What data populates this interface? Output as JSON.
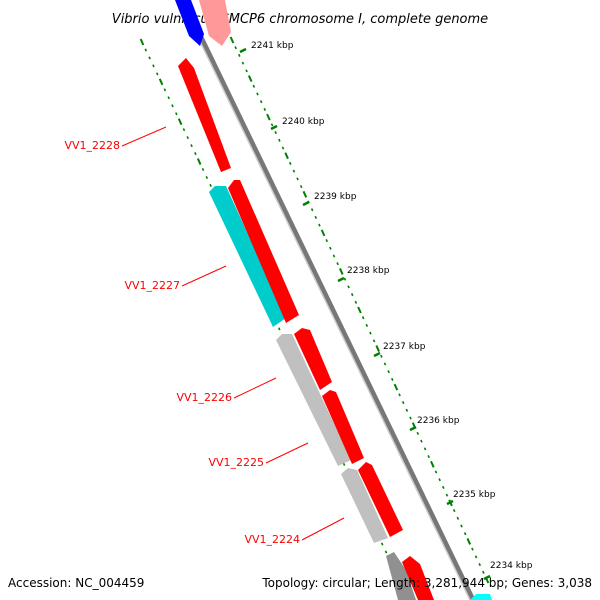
{
  "title": "Vibrio vulnificus CMCP6 chromosome I, complete genome",
  "footer": {
    "accession": "Accession: NC_004459",
    "info": "Topology: circular; Length: 3,281,944 bp; Genes: 3,038"
  },
  "scale_ticks": [
    "2241 kbp",
    "2240 kbp",
    "2239 kbp",
    "2238 kbp",
    "2237 kbp",
    "2236 kbp",
    "2235 kbp",
    "2234 kbp"
  ],
  "gene_labels": [
    "VV1_2228",
    "VV1_2227",
    "VV1_2226",
    "VV1_2225",
    "VV1_2224"
  ],
  "colors": {
    "forward_gene": "#ff0000",
    "reverse_gene_red": "#ff0000",
    "reverse_gene_cyan": "#00cccc",
    "reverse_gene_gray": "#c0c0c0",
    "blue_gene": "#0000ff",
    "pink_gene": "#ff9999",
    "backbone": "#888888",
    "gc_ticks": "#008000",
    "label_text": "#ff0000",
    "tick_text": "#000000"
  }
}
